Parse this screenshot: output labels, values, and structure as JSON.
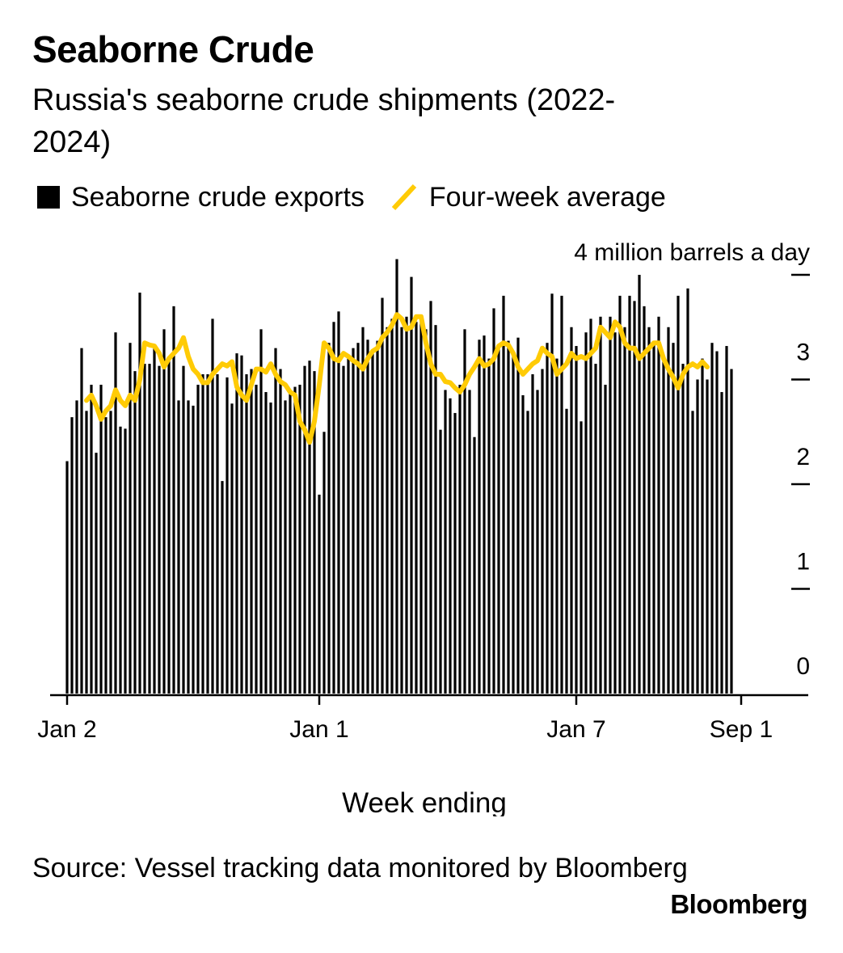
{
  "title": "Seaborne Crude",
  "subtitle": "Russia's seaborne crude shipments (2022-2024)",
  "legend": {
    "bars_label": "Seaborne crude exports",
    "line_label": "Four-week average"
  },
  "source": "Source: Vessel tracking data monitored by Bloomberg",
  "brand": "Bloomberg",
  "colors": {
    "bars": "#000000",
    "line": "#FFCB05",
    "axis": "#000000"
  },
  "chart_data": {
    "type": "bar",
    "xlabel": "Week ending",
    "ylabel": "",
    "unit_label": "4 million barrels a day",
    "ylim": [
      0,
      4
    ],
    "yticks": [
      0,
      1,
      2,
      3,
      4
    ],
    "ytick_labels": [
      "0",
      "1",
      "2",
      "3",
      ""
    ],
    "x_tick_labels": [
      {
        "index": 0,
        "label": "Jan 2"
      },
      {
        "index": 52,
        "label": "Jan 1"
      },
      {
        "index": 105,
        "label": "Jan 7"
      },
      {
        "index": 139,
        "label": "Sep 1"
      }
    ],
    "series": [
      {
        "name": "Seaborne crude exports",
        "kind": "bar",
        "values": [
          2.22,
          2.64,
          2.8,
          3.3,
          2.7,
          2.95,
          2.3,
          2.95,
          2.64,
          2.7,
          3.45,
          2.55,
          2.53,
          3.35,
          3.08,
          3.83,
          3.15,
          3.15,
          3.3,
          3.13,
          3.48,
          3.22,
          3.7,
          2.8,
          3.13,
          2.8,
          2.75,
          2.95,
          3.05,
          3.05,
          3.58,
          3.05,
          2.03,
          3.02,
          2.77,
          3.25,
          3.23,
          3.05,
          3.1,
          2.95,
          3.48,
          2.88,
          2.78,
          3.3,
          3.1,
          2.8,
          2.9,
          2.93,
          2.95,
          3.13,
          3.18,
          3.08,
          1.9,
          2.5,
          3.35,
          3.55,
          3.65,
          3.13,
          3.2,
          3.3,
          3.35,
          3.5,
          3.38,
          3.25,
          3.37,
          3.78,
          3.5,
          3.58,
          4.15,
          3.5,
          3.6,
          3.98,
          3.55,
          3.62,
          3.48,
          3.75,
          3.52,
          2.52,
          2.9,
          2.82,
          2.68,
          2.95,
          3.48,
          2.9,
          2.45,
          3.38,
          3.42,
          3.2,
          3.68,
          3.3,
          3.8,
          3.37,
          3.25,
          3.4,
          2.85,
          2.7,
          3.05,
          2.9,
          3.1,
          3.35,
          3.82,
          3.2,
          3.8,
          2.72,
          3.5,
          3.32,
          2.6,
          3.45,
          3.58,
          3.15,
          3.6,
          2.95,
          3.6,
          3.45,
          3.8,
          3.5,
          3.8,
          3.75,
          4.0,
          3.7,
          3.5,
          3.35,
          3.6,
          3.2,
          3.5,
          3.35,
          3.8,
          3.15,
          3.87,
          2.7,
          3.0,
          3.2,
          3.0,
          3.35,
          3.27,
          2.88,
          3.32,
          3.1
        ]
      },
      {
        "name": "Four-week average",
        "kind": "line",
        "start_index": 4,
        "values": [
          2.8,
          2.85,
          2.75,
          2.62,
          2.7,
          2.75,
          2.9,
          2.8,
          2.75,
          2.85,
          2.8,
          3.0,
          3.35,
          3.33,
          3.32,
          3.25,
          3.12,
          3.2,
          3.25,
          3.3,
          3.4,
          3.22,
          3.1,
          3.05,
          2.97,
          2.97,
          3.05,
          3.1,
          3.15,
          3.13,
          3.17,
          2.93,
          2.85,
          2.8,
          2.95,
          3.1,
          3.1,
          3.07,
          3.15,
          3.05,
          2.98,
          2.95,
          2.88,
          2.85,
          2.6,
          2.52,
          2.4,
          2.6,
          2.95,
          3.35,
          3.3,
          3.2,
          3.18,
          3.25,
          3.22,
          3.18,
          3.15,
          3.1,
          3.2,
          3.27,
          3.3,
          3.4,
          3.45,
          3.52,
          3.62,
          3.58,
          3.48,
          3.5,
          3.6,
          3.6,
          3.35,
          3.15,
          3.05,
          3.05,
          2.98,
          2.97,
          2.92,
          2.88,
          2.95,
          3.05,
          3.12,
          3.2,
          3.13,
          3.15,
          3.2,
          3.32,
          3.35,
          3.33,
          3.25,
          3.12,
          3.05,
          3.1,
          3.15,
          3.18,
          3.3,
          3.25,
          3.22,
          3.05,
          3.1,
          3.15,
          3.25,
          3.2,
          3.22,
          3.2,
          3.25,
          3.3,
          3.5,
          3.45,
          3.4,
          3.55,
          3.5,
          3.35,
          3.3,
          3.3,
          3.2,
          3.25,
          3.3,
          3.35,
          3.35,
          3.2,
          3.1,
          3.02,
          2.92,
          3.05,
          3.12,
          3.15,
          3.12,
          3.17,
          3.12
        ]
      }
    ]
  }
}
